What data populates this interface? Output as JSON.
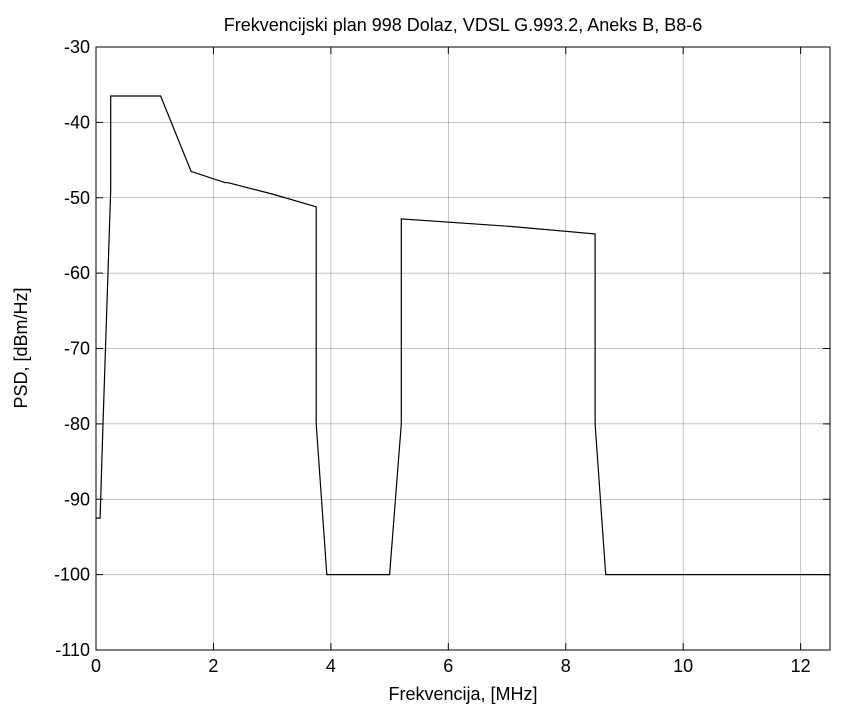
{
  "chart_data": {
    "type": "line",
    "title": "Frekvencijski plan 998 Dolaz, VDSL G.993.2, Aneks B, B8-6",
    "xlabel": "Frekvencija, [MHz]",
    "ylabel": "PSD, [dBm/Hz]",
    "xlim": [
      0,
      12.5
    ],
    "ylim": [
      -110,
      -30
    ],
    "xticks": [
      0,
      2,
      4,
      6,
      8,
      10,
      12
    ],
    "xtick_labels": [
      "0",
      "2",
      "4",
      "6",
      "8",
      "10",
      "12"
    ],
    "yticks": [
      -110,
      -100,
      -90,
      -80,
      -70,
      -60,
      -50,
      -40,
      -30
    ],
    "ytick_labels": [
      "-110",
      "-100",
      "-90",
      "-80",
      "-70",
      "-60",
      "-50",
      "-40",
      "-30"
    ],
    "grid": true,
    "series": [
      {
        "color": "#000000",
        "x": [
          0.0,
          0.07,
          0.07,
          0.12,
          0.25,
          0.25,
          1.1,
          1.62,
          2.2,
          2.25,
          3.0,
          3.75,
          3.75,
          3.93,
          5.0,
          5.2,
          5.2,
          7.05,
          8.5,
          8.5,
          8.68,
          12.5
        ],
        "y": [
          -92.5,
          -92.5,
          -92.5,
          -80.0,
          -49.0,
          -36.5,
          -36.5,
          -46.5,
          -48.0,
          -48.0,
          -49.5,
          -51.2,
          -80.0,
          -100.0,
          -100.0,
          -80.0,
          -52.8,
          -53.8,
          -54.8,
          -80.0,
          -100.0,
          -100.0
        ]
      }
    ]
  }
}
